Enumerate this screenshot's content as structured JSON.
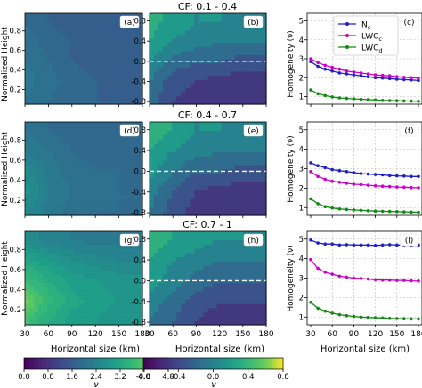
{
  "figure": {
    "row_titles": [
      "CF: 0.1 - 0.4",
      "CF: 0.4 - 0.7",
      "CF: 0.7 - 1"
    ],
    "panel_labels": [
      [
        "(a)",
        "(b)",
        "(c)"
      ],
      [
        "(d)",
        "(e)",
        "(f)"
      ],
      [
        "(g)",
        "(h)",
        "(i)"
      ]
    ],
    "ylabel_left": "Normalized Height",
    "ylabel_right": "Homogeneity (ν)",
    "xlabel": "Horizontal size (km)",
    "colorbar_label": "ν",
    "colorbars": [
      {
        "ticks": [
          "0.0",
          "0.8",
          "1.6",
          "2.4",
          "3.2",
          "4.0",
          "4.8"
        ]
      },
      {
        "ticks": [
          "-0.8",
          "-0.4",
          "0.0",
          "0.4",
          "0.8"
        ]
      }
    ]
  },
  "chart_data": [
    {
      "type": "heatmap",
      "panel": "(a)",
      "title": "",
      "xlabel": "",
      "ylabel": "Normalized Height",
      "xlim": [
        30,
        180
      ],
      "ylim": [
        0.05,
        0.98
      ],
      "x": [
        30,
        60,
        90,
        120,
        150,
        180
      ],
      "y": [
        0.1,
        0.3,
        0.5,
        0.7,
        0.9
      ],
      "z": [
        [
          2.1,
          1.9,
          1.8,
          1.7,
          1.7,
          1.6
        ],
        [
          2.2,
          2.0,
          1.8,
          1.7,
          1.6,
          1.6
        ],
        [
          2.1,
          1.9,
          1.7,
          1.6,
          1.6,
          1.6
        ],
        [
          2.0,
          1.8,
          1.7,
          1.6,
          1.6,
          1.5
        ],
        [
          1.9,
          1.7,
          1.6,
          1.5,
          1.5,
          1.5
        ]
      ],
      "xticks": [],
      "yticks": [
        "0.2",
        "0.4",
        "0.6",
        "0.8"
      ]
    },
    {
      "type": "heatmap",
      "panel": "(b)",
      "title": "",
      "xlabel": "",
      "ylabel": "",
      "xlim": [
        30,
        180
      ],
      "ylim": [
        -0.85,
        0.95
      ],
      "x": [
        30,
        60,
        90,
        120,
        150,
        180
      ],
      "y": [
        -0.8,
        -0.4,
        0.0,
        0.4,
        0.8
      ],
      "z": [
        [
          -0.2,
          -0.5,
          -0.6,
          -0.7,
          -0.7,
          -0.7
        ],
        [
          -0.1,
          -0.4,
          -0.5,
          -0.6,
          -0.6,
          -0.6
        ],
        [
          0.1,
          -0.2,
          -0.3,
          -0.3,
          -0.4,
          -0.4
        ],
        [
          0.3,
          0.1,
          0.0,
          -0.1,
          -0.1,
          -0.1
        ],
        [
          0.4,
          0.2,
          0.1,
          0.1,
          0.0,
          0.0
        ]
      ],
      "dashed_line_y": 0.0,
      "xticks": [],
      "yticks": [
        "-0.8",
        "-0.4",
        "0.0",
        "0.4",
        "0.8"
      ]
    },
    {
      "type": "line",
      "panel": "(c)",
      "title": "",
      "xlabel": "",
      "ylabel": "Homogeneity (ν)",
      "xlim": [
        25,
        185
      ],
      "ylim": [
        0.6,
        5.4
      ],
      "grid": true,
      "legend": "top-right",
      "x": [
        30,
        40,
        50,
        60,
        70,
        80,
        90,
        100,
        110,
        120,
        130,
        140,
        150,
        160,
        170,
        180
      ],
      "series": [
        {
          "name": "N_c",
          "color": "#1f1fcc",
          "values": [
            2.85,
            2.6,
            2.45,
            2.35,
            2.25,
            2.2,
            2.15,
            2.1,
            2.05,
            2.0,
            1.98,
            1.95,
            1.92,
            1.9,
            1.88,
            1.85
          ]
        },
        {
          "name": "LWC_c",
          "color": "#cc00cc",
          "values": [
            3.0,
            2.8,
            2.65,
            2.55,
            2.45,
            2.35,
            2.3,
            2.25,
            2.2,
            2.15,
            2.12,
            2.1,
            2.05,
            2.02,
            2.0,
            1.98
          ]
        },
        {
          "name": "LWC_d",
          "color": "#138a13",
          "values": [
            1.35,
            1.15,
            1.05,
            0.98,
            0.93,
            0.9,
            0.88,
            0.86,
            0.84,
            0.82,
            0.8,
            0.79,
            0.78,
            0.77,
            0.76,
            0.75
          ]
        }
      ],
      "xticks": [],
      "yticks": [
        "1",
        "2",
        "3",
        "4",
        "5"
      ]
    },
    {
      "type": "heatmap",
      "panel": "(d)",
      "title": "",
      "xlabel": "",
      "ylabel": "Normalized Height",
      "xlim": [
        30,
        180
      ],
      "ylim": [
        0.05,
        0.98
      ],
      "x": [
        30,
        60,
        90,
        120,
        150,
        180
      ],
      "y": [
        0.1,
        0.3,
        0.5,
        0.7,
        0.9
      ],
      "z": [
        [
          2.6,
          2.2,
          2.0,
          1.9,
          1.9,
          1.9
        ],
        [
          2.8,
          2.3,
          2.1,
          2.0,
          1.9,
          1.9
        ],
        [
          2.6,
          2.2,
          2.0,
          1.9,
          1.9,
          1.9
        ],
        [
          2.3,
          2.1,
          1.9,
          1.8,
          1.8,
          1.8
        ],
        [
          2.1,
          1.9,
          1.8,
          1.8,
          1.7,
          1.7
        ]
      ],
      "xticks": [],
      "yticks": [
        "0.2",
        "0.4",
        "0.6",
        "0.8"
      ]
    },
    {
      "type": "heatmap",
      "panel": "(e)",
      "title": "",
      "xlabel": "",
      "ylabel": "",
      "xlim": [
        30,
        180
      ],
      "ylim": [
        -0.85,
        0.95
      ],
      "x": [
        30,
        60,
        90,
        120,
        150,
        180
      ],
      "y": [
        -0.8,
        -0.4,
        0.0,
        0.4,
        0.8
      ],
      "z": [
        [
          -0.1,
          -0.4,
          -0.6,
          -0.7,
          -0.7,
          -0.7
        ],
        [
          0.0,
          -0.3,
          -0.5,
          -0.6,
          -0.6,
          -0.6
        ],
        [
          0.2,
          -0.1,
          -0.3,
          -0.3,
          -0.4,
          -0.4
        ],
        [
          0.3,
          0.1,
          0.0,
          -0.1,
          -0.1,
          -0.1
        ],
        [
          0.4,
          0.3,
          0.1,
          0.1,
          0.0,
          0.0
        ]
      ],
      "dashed_line_y": 0.0,
      "xticks": [],
      "yticks": [
        "-0.8",
        "-0.4",
        "0.0",
        "0.4",
        "0.8"
      ]
    },
    {
      "type": "line",
      "panel": "(f)",
      "title": "",
      "xlabel": "",
      "ylabel": "Homogeneity (ν)",
      "xlim": [
        25,
        185
      ],
      "ylim": [
        0.6,
        5.4
      ],
      "grid": true,
      "x": [
        30,
        40,
        50,
        60,
        70,
        80,
        90,
        100,
        110,
        120,
        130,
        140,
        150,
        160,
        170,
        180
      ],
      "series": [
        {
          "name": "N_c",
          "color": "#1f1fcc",
          "values": [
            3.3,
            3.15,
            3.05,
            2.95,
            2.9,
            2.85,
            2.8,
            2.75,
            2.72,
            2.7,
            2.68,
            2.65,
            2.63,
            2.62,
            2.6,
            2.6
          ]
        },
        {
          "name": "LWC_c",
          "color": "#cc00cc",
          "values": [
            2.85,
            2.6,
            2.45,
            2.35,
            2.3,
            2.25,
            2.2,
            2.18,
            2.15,
            2.12,
            2.1,
            2.08,
            2.06,
            2.05,
            2.03,
            2.02
          ]
        },
        {
          "name": "LWC_d",
          "color": "#138a13",
          "values": [
            1.45,
            1.2,
            1.05,
            0.98,
            0.93,
            0.9,
            0.88,
            0.86,
            0.84,
            0.82,
            0.81,
            0.8,
            0.79,
            0.78,
            0.77,
            0.76
          ]
        }
      ],
      "xticks": [],
      "yticks": [
        "1",
        "2",
        "3",
        "4",
        "5"
      ]
    },
    {
      "type": "heatmap",
      "panel": "(g)",
      "title": "",
      "xlabel": "Horizontal size (km)",
      "ylabel": "Normalized Height",
      "xlim": [
        30,
        180
      ],
      "ylim": [
        0.05,
        0.98
      ],
      "x": [
        30,
        60,
        90,
        120,
        150,
        180
      ],
      "y": [
        0.1,
        0.3,
        0.5,
        0.7,
        0.9
      ],
      "z": [
        [
          3.8,
          3.3,
          3.0,
          2.9,
          2.8,
          2.8
        ],
        [
          4.2,
          3.6,
          3.2,
          3.0,
          2.9,
          2.9
        ],
        [
          3.7,
          3.3,
          3.0,
          2.9,
          2.8,
          2.8
        ],
        [
          3.2,
          2.9,
          2.7,
          2.6,
          2.5,
          2.5
        ],
        [
          2.6,
          2.4,
          2.3,
          2.2,
          2.2,
          2.1
        ]
      ],
      "xticks": [
        "30",
        "60",
        "90",
        "120",
        "150",
        "180"
      ],
      "yticks": [
        "0.2",
        "0.4",
        "0.6",
        "0.8"
      ]
    },
    {
      "type": "heatmap",
      "panel": "(h)",
      "title": "",
      "xlabel": "Horizontal size (km)",
      "ylabel": "",
      "xlim": [
        30,
        180
      ],
      "ylim": [
        -0.85,
        0.95
      ],
      "x": [
        30,
        60,
        90,
        120,
        150,
        180
      ],
      "y": [
        -0.8,
        -0.4,
        0.0,
        0.4,
        0.8
      ],
      "z": [
        [
          -0.1,
          -0.3,
          -0.5,
          -0.6,
          -0.7,
          -0.7
        ],
        [
          0.0,
          -0.2,
          -0.4,
          -0.5,
          -0.5,
          -0.5
        ],
        [
          0.2,
          0.0,
          -0.2,
          -0.3,
          -0.3,
          -0.3
        ],
        [
          0.3,
          0.1,
          0.0,
          -0.1,
          -0.1,
          -0.1
        ],
        [
          0.4,
          0.3,
          0.2,
          0.1,
          0.1,
          0.0
        ]
      ],
      "dashed_line_y": 0.0,
      "xticks": [
        "30",
        "60",
        "90",
        "120",
        "150",
        "180"
      ],
      "yticks": [
        "-0.8",
        "-0.4",
        "0.0",
        "0.4",
        "0.8"
      ]
    },
    {
      "type": "line",
      "panel": "(i)",
      "title": "",
      "xlabel": "Horizontal size (km)",
      "ylabel": "Homogeneity (ν)",
      "xlim": [
        25,
        185
      ],
      "ylim": [
        0.6,
        5.4
      ],
      "grid": true,
      "x": [
        30,
        40,
        50,
        60,
        70,
        80,
        90,
        100,
        110,
        120,
        130,
        140,
        150,
        160,
        170,
        180
      ],
      "series": [
        {
          "name": "N_c",
          "color": "#1f1fcc",
          "values": [
            4.95,
            4.8,
            4.75,
            4.75,
            4.7,
            4.72,
            4.7,
            4.7,
            4.7,
            4.68,
            4.7,
            4.72,
            4.7,
            4.7,
            4.68,
            4.7
          ]
        },
        {
          "name": "LWC_c",
          "color": "#cc00cc",
          "values": [
            3.95,
            3.5,
            3.3,
            3.2,
            3.1,
            3.05,
            3.0,
            2.98,
            2.95,
            2.92,
            2.9,
            2.9,
            2.88,
            2.88,
            2.86,
            2.85
          ]
        },
        {
          "name": "LWC_d",
          "color": "#138a13",
          "values": [
            1.75,
            1.45,
            1.3,
            1.2,
            1.12,
            1.07,
            1.03,
            1.0,
            0.98,
            0.96,
            0.95,
            0.93,
            0.92,
            0.91,
            0.9,
            0.9
          ]
        }
      ],
      "xticks": [
        "30",
        "60",
        "90",
        "120",
        "150",
        "180"
      ],
      "yticks": [
        "1",
        "2",
        "3",
        "4",
        "5"
      ]
    }
  ]
}
